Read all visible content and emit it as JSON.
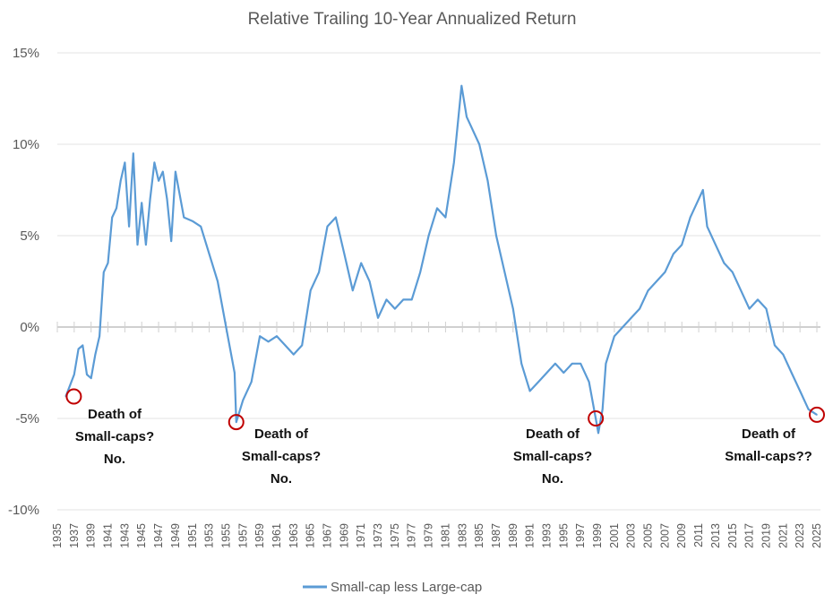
{
  "chart_data": {
    "type": "line",
    "title": "Relative Trailing 10-Year Annualized Return",
    "xlabel": "",
    "ylabel": "",
    "ylim": [
      -10,
      15
    ],
    "xlim": [
      1935,
      2025
    ],
    "yticks": [
      {
        "value": 15,
        "label": "15%",
        "color": "#595959"
      },
      {
        "value": 10,
        "label": "10%",
        "color": "#595959"
      },
      {
        "value": 5,
        "label": "5%",
        "color": "#595959"
      },
      {
        "value": 0,
        "label": "0%",
        "color": "#595959"
      },
      {
        "value": -5,
        "label": "-5%",
        "color": "#ff0000"
      },
      {
        "value": -10,
        "label": "-10%",
        "color": "#ff0000"
      }
    ],
    "xtick_labels": [
      "1935",
      "1937",
      "1939",
      "1941",
      "1943",
      "1945",
      "1947",
      "1949",
      "1951",
      "1953",
      "1955",
      "1957",
      "1959",
      "1961",
      "1963",
      "1965",
      "1967",
      "1969",
      "1971",
      "1973",
      "1975",
      "1977",
      "1979",
      "1981",
      "1983",
      "1985",
      "1987",
      "1989",
      "1991",
      "1993",
      "1995",
      "1997",
      "1999",
      "2001",
      "2003",
      "2005",
      "2007",
      "2009",
      "2011",
      "2013",
      "2015",
      "2017",
      "2019",
      "2021",
      "2023",
      "2025"
    ],
    "grid": true,
    "legend": {
      "position": "bottom",
      "entries": [
        "Small-cap less Large-cap"
      ]
    },
    "series": [
      {
        "name": "Small-cap less Large-cap",
        "color": "#5b9bd5",
        "x": [
          1936,
          1936.5,
          1937,
          1937.5,
          1938,
          1938.5,
          1939,
          1939.5,
          1940,
          1940.5,
          1941,
          1941.5,
          1942,
          1942.5,
          1943,
          1943.5,
          1944,
          1944.5,
          1945,
          1945.5,
          1946,
          1946.5,
          1947,
          1947.5,
          1948,
          1948.5,
          1949,
          1950,
          1951,
          1952,
          1953,
          1954,
          1955,
          1956,
          1956.2,
          1957,
          1958,
          1959,
          1960,
          1961,
          1962,
          1963,
          1964,
          1965,
          1966,
          1967,
          1968,
          1969,
          1970,
          1971,
          1972,
          1973,
          1974,
          1975,
          1976,
          1977,
          1978,
          1979,
          1980,
          1981,
          1982,
          1982.9,
          1983.5,
          1984,
          1985,
          1986,
          1987,
          1988,
          1989,
          1990,
          1991,
          1992,
          1993,
          1994,
          1995,
          1996,
          1997,
          1998,
          1998.8,
          1999.1,
          1999.6,
          2000,
          2001,
          2002,
          2003,
          2004,
          2005,
          2006,
          2007,
          2008,
          2009,
          2010,
          2011,
          2011.5,
          2012,
          2013,
          2014,
          2015,
          2016,
          2017,
          2018,
          2019,
          2020,
          2021,
          2022,
          2023,
          2024,
          2025
        ],
        "y": [
          -3.8,
          -3.2,
          -2.6,
          -1.2,
          -1.0,
          -2.6,
          -2.8,
          -1.5,
          -0.5,
          3.0,
          3.5,
          6.0,
          6.5,
          8.0,
          9.0,
          5.5,
          9.5,
          4.5,
          6.8,
          4.5,
          7.0,
          9.0,
          8.0,
          8.5,
          7.0,
          4.7,
          8.5,
          6.0,
          5.8,
          5.5,
          4.0,
          2.5,
          0.0,
          -2.5,
          -5.2,
          -4.0,
          -3.0,
          -0.5,
          -0.8,
          -0.5,
          -1.0,
          -1.5,
          -1.0,
          2.0,
          3.0,
          5.5,
          6.0,
          4.0,
          2.0,
          3.5,
          2.5,
          0.5,
          1.5,
          1.0,
          1.5,
          1.5,
          3.0,
          5.0,
          6.5,
          6.0,
          9.0,
          13.2,
          11.5,
          11.0,
          10.0,
          8.0,
          5.0,
          3.0,
          1.0,
          -2.0,
          -3.5,
          -3.0,
          -2.5,
          -2.0,
          -2.5,
          -2.0,
          -2.0,
          -3.0,
          -5.0,
          -5.8,
          -4.5,
          -2.0,
          -0.5,
          0.0,
          0.5,
          1.0,
          2.0,
          2.5,
          3.0,
          4.0,
          4.5,
          6.0,
          7.0,
          7.5,
          5.5,
          4.5,
          3.5,
          3.0,
          2.0,
          1.0,
          1.5,
          1.0,
          -1.0,
          -1.5,
          -2.5,
          -3.5,
          -4.5,
          -4.8
        ]
      }
    ],
    "annotations": [
      {
        "lines": [
          "Death of",
          "Small-caps?",
          "No."
        ],
        "x": 1936,
        "y": -3.8
      },
      {
        "lines": [
          "Death of",
          "Small-caps?",
          "No."
        ],
        "x": 1956.2,
        "y": -5.2
      },
      {
        "lines": [
          "Death of",
          "Small-caps?",
          "No."
        ],
        "x": 1998.8,
        "y": -5.0
      },
      {
        "lines": [
          "Death of",
          "Small-caps??"
        ],
        "x": 2025,
        "y": -4.8
      }
    ]
  }
}
